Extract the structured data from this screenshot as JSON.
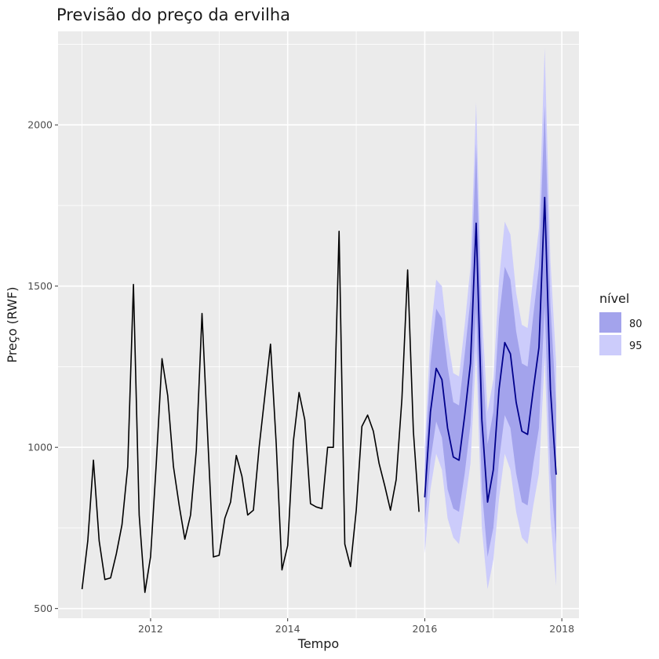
{
  "chart_data": {
    "type": "line",
    "title": "Previsão do preço da ervilha",
    "xlabel": "Tempo",
    "ylabel": "Preço (RWF)",
    "xlim": [
      2010.65,
      2018.25
    ],
    "ylim": [
      470,
      2290
    ],
    "xticks": [
      2012,
      2014,
      2016,
      2018
    ],
    "xtick_labels": [
      "2012",
      "2014",
      "2016",
      "2018"
    ],
    "yticks": [
      500,
      1000,
      1500,
      2000
    ],
    "ytick_labels": [
      "500",
      "1000",
      "1500",
      "2000"
    ],
    "grid": true,
    "legend": {
      "title": "nível",
      "position": "right",
      "items": [
        {
          "label": "80",
          "color": "#a3a3ec"
        },
        {
          "label": "95",
          "color": "#ccccfb"
        }
      ]
    },
    "colors": {
      "panel": "#ebebeb",
      "grid": "#ffffff",
      "history": "#000000",
      "forecast": "#00008b",
      "band80": "#a3a3ec",
      "band95": "#ccccfb"
    },
    "series": [
      {
        "role": "history",
        "start": 2011.0,
        "step": 0.0833333,
        "values": [
          560,
          710,
          960,
          710,
          590,
          595,
          670,
          760,
          940,
          1505,
          790,
          550,
          660,
          950,
          1275,
          1160,
          940,
          820,
          715,
          790,
          990,
          1415,
          1030,
          660,
          665,
          780,
          830,
          975,
          910,
          790,
          805,
          1000,
          1160,
          1320,
          1010,
          620,
          695,
          1020,
          1170,
          1085,
          825,
          815,
          810,
          1000,
          1000,
          1670,
          700,
          630,
          805,
          1065,
          1100,
          1050,
          950,
          880,
          805,
          900,
          1150,
          1550,
          1050,
          800
        ]
      },
      {
        "role": "forecast",
        "start": 2016.0,
        "step": 0.0833333,
        "values": [
          845,
          1110,
          1245,
          1210,
          1060,
          970,
          960,
          1100,
          1260,
          1695,
          1085,
          830,
          930,
          1180,
          1325,
          1290,
          1140,
          1050,
          1040,
          1180,
          1310,
          1775,
          1180,
          915
        ],
        "lo80": [
          760,
          960,
          1080,
          1030,
          870,
          810,
          800,
          920,
          1070,
          1430,
          870,
          660,
          750,
          960,
          1100,
          1060,
          920,
          830,
          820,
          950,
          1060,
          1440,
          920,
          700
        ],
        "hi80": [
          930,
          1260,
          1430,
          1400,
          1250,
          1140,
          1130,
          1290,
          1460,
          1940,
          1300,
          1010,
          1110,
          1400,
          1560,
          1520,
          1360,
          1260,
          1250,
          1410,
          1560,
          2060,
          1440,
          1130
        ],
        "lo95": [
          670,
          870,
          980,
          930,
          780,
          720,
          700,
          820,
          950,
          1300,
          750,
          560,
          650,
          840,
          980,
          930,
          800,
          720,
          700,
          820,
          920,
          1280,
          780,
          570
        ],
        "hi95": [
          1000,
          1350,
          1520,
          1500,
          1340,
          1230,
          1220,
          1380,
          1560,
          2070,
          1420,
          1110,
          1210,
          1520,
          1700,
          1660,
          1480,
          1380,
          1370,
          1530,
          1680,
          2240,
          1580,
          1260
        ]
      }
    ]
  }
}
